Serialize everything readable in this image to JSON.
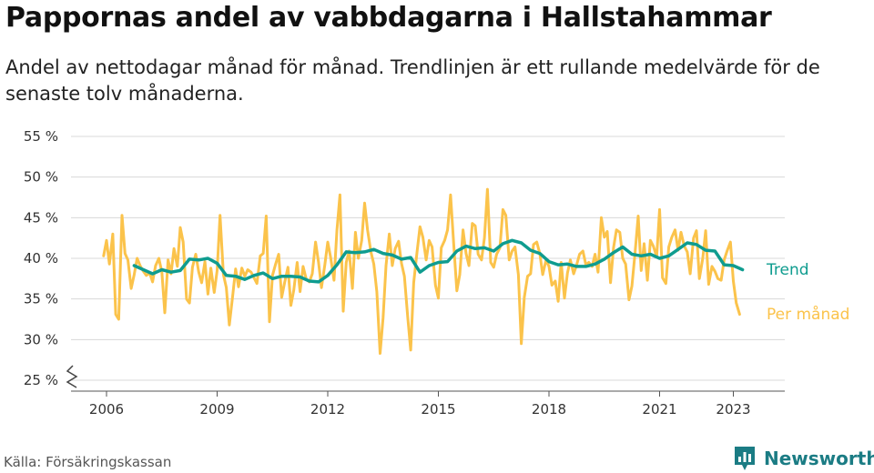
{
  "header": {
    "title": "Pappornas andel av vabbdagarna i Hallstahammar",
    "subtitle": "Andel av nettodagar månad för månad. Trendlinjen är ett rullande medelvärde för de senaste tolv månaderna."
  },
  "footer": {
    "source": "Källa: Försäkringskassan",
    "brand": "Newsworthy"
  },
  "colors": {
    "monthly": "#fbc34b",
    "trend": "#0f9c8f",
    "brand": "#1b7c84"
  },
  "icons": {
    "axis_break": "axis-break-icon",
    "logo": "bar-chart-logo-icon"
  },
  "chart_data": {
    "type": "line",
    "y_tick_labels": [
      "25 %",
      "30 %",
      "35 %",
      "40 %",
      "45 %",
      "50 %",
      "55 %"
    ],
    "x_tick_labels": [
      "2006",
      "2009",
      "2012",
      "2015",
      "2018",
      "2021",
      "2023"
    ],
    "ylim": [
      25,
      55
    ],
    "grid": true,
    "axis_break": true,
    "legend": "inline labels at line ends (right)",
    "series": [
      {
        "name": "Per månad",
        "values": [
          [
            2005.92,
            40.3
          ],
          [
            2006.0,
            42.2
          ],
          [
            2006.08,
            39.3
          ],
          [
            2006.17,
            43.0
          ],
          [
            2006.25,
            33.1
          ],
          [
            2006.33,
            32.5
          ],
          [
            2006.42,
            45.3
          ],
          [
            2006.5,
            40.6
          ],
          [
            2006.58,
            39.8
          ],
          [
            2006.67,
            36.3
          ],
          [
            2006.75,
            38.0
          ],
          [
            2006.83,
            40.0
          ],
          [
            2006.92,
            39.0
          ],
          [
            2007.0,
            38.4
          ],
          [
            2007.08,
            37.9
          ],
          [
            2007.17,
            38.2
          ],
          [
            2007.25,
            37.1
          ],
          [
            2007.33,
            39.1
          ],
          [
            2007.42,
            40.0
          ],
          [
            2007.5,
            38.3
          ],
          [
            2007.58,
            33.3
          ],
          [
            2007.67,
            39.8
          ],
          [
            2007.75,
            38.1
          ],
          [
            2007.83,
            41.2
          ],
          [
            2007.92,
            39.0
          ],
          [
            2008.0,
            43.8
          ],
          [
            2008.08,
            42.0
          ],
          [
            2008.17,
            35.0
          ],
          [
            2008.25,
            34.5
          ],
          [
            2008.33,
            38.9
          ],
          [
            2008.42,
            40.5
          ],
          [
            2008.5,
            38.3
          ],
          [
            2008.58,
            37.0
          ],
          [
            2008.67,
            39.6
          ],
          [
            2008.75,
            35.6
          ],
          [
            2008.83,
            38.8
          ],
          [
            2008.92,
            35.8
          ],
          [
            2009.0,
            38.5
          ],
          [
            2009.08,
            45.3
          ],
          [
            2009.17,
            38.0
          ],
          [
            2009.25,
            36.4
          ],
          [
            2009.33,
            31.8
          ],
          [
            2009.42,
            35.3
          ],
          [
            2009.5,
            38.7
          ],
          [
            2009.58,
            36.5
          ],
          [
            2009.67,
            38.8
          ],
          [
            2009.75,
            37.8
          ],
          [
            2009.83,
            38.6
          ],
          [
            2009.92,
            38.3
          ],
          [
            2010.0,
            37.6
          ],
          [
            2010.08,
            36.9
          ],
          [
            2010.17,
            40.3
          ],
          [
            2010.25,
            40.6
          ],
          [
            2010.33,
            45.2
          ],
          [
            2010.42,
            32.2
          ],
          [
            2010.5,
            37.9
          ],
          [
            2010.58,
            39.2
          ],
          [
            2010.67,
            40.5
          ],
          [
            2010.75,
            35.2
          ],
          [
            2010.83,
            37.0
          ],
          [
            2010.92,
            38.9
          ],
          [
            2011.0,
            34.2
          ],
          [
            2011.08,
            36.1
          ],
          [
            2011.17,
            39.5
          ],
          [
            2011.25,
            35.9
          ],
          [
            2011.33,
            39.0
          ],
          [
            2011.42,
            37.4
          ],
          [
            2011.5,
            37.1
          ],
          [
            2011.58,
            38.1
          ],
          [
            2011.67,
            42.0
          ],
          [
            2011.75,
            39.5
          ],
          [
            2011.83,
            36.4
          ],
          [
            2011.92,
            39.2
          ],
          [
            2012.0,
            42.0
          ],
          [
            2012.08,
            40.1
          ],
          [
            2012.17,
            37.3
          ],
          [
            2012.25,
            43.5
          ],
          [
            2012.33,
            47.8
          ],
          [
            2012.42,
            33.5
          ],
          [
            2012.5,
            39.5
          ],
          [
            2012.58,
            40.9
          ],
          [
            2012.67,
            36.3
          ],
          [
            2012.75,
            43.2
          ],
          [
            2012.83,
            40.0
          ],
          [
            2012.92,
            42.2
          ],
          [
            2013.0,
            46.8
          ],
          [
            2013.08,
            43.5
          ],
          [
            2013.17,
            40.8
          ],
          [
            2013.25,
            39.3
          ],
          [
            2013.33,
            35.9
          ],
          [
            2013.42,
            28.3
          ],
          [
            2013.5,
            32.7
          ],
          [
            2013.58,
            39.1
          ],
          [
            2013.67,
            43.0
          ],
          [
            2013.75,
            39.1
          ],
          [
            2013.83,
            41.2
          ],
          [
            2013.92,
            42.1
          ],
          [
            2014.0,
            39.4
          ],
          [
            2014.08,
            37.8
          ],
          [
            2014.17,
            32.7
          ],
          [
            2014.25,
            28.7
          ],
          [
            2014.33,
            37.0
          ],
          [
            2014.42,
            40.7
          ],
          [
            2014.5,
            43.9
          ],
          [
            2014.58,
            42.6
          ],
          [
            2014.67,
            39.8
          ],
          [
            2014.75,
            42.2
          ],
          [
            2014.83,
            41.4
          ],
          [
            2014.92,
            36.7
          ],
          [
            2015.0,
            35.1
          ],
          [
            2015.08,
            41.3
          ],
          [
            2015.17,
            42.2
          ],
          [
            2015.25,
            43.5
          ],
          [
            2015.33,
            47.8
          ],
          [
            2015.42,
            41.5
          ],
          [
            2015.5,
            36.0
          ],
          [
            2015.58,
            38.0
          ],
          [
            2015.67,
            43.5
          ],
          [
            2015.75,
            40.6
          ],
          [
            2015.83,
            39.1
          ],
          [
            2015.92,
            44.3
          ],
          [
            2016.0,
            44.0
          ],
          [
            2016.08,
            40.5
          ],
          [
            2016.17,
            39.8
          ],
          [
            2016.25,
            42.5
          ],
          [
            2016.33,
            48.5
          ],
          [
            2016.42,
            39.5
          ],
          [
            2016.5,
            38.9
          ],
          [
            2016.58,
            40.5
          ],
          [
            2016.67,
            41.3
          ],
          [
            2016.75,
            46.0
          ],
          [
            2016.83,
            45.3
          ],
          [
            2016.92,
            39.8
          ],
          [
            2017.0,
            40.9
          ],
          [
            2017.08,
            41.4
          ],
          [
            2017.17,
            38.0
          ],
          [
            2017.25,
            29.5
          ],
          [
            2017.33,
            35.2
          ],
          [
            2017.42,
            37.8
          ],
          [
            2017.5,
            38.1
          ],
          [
            2017.58,
            41.7
          ],
          [
            2017.67,
            42.0
          ],
          [
            2017.75,
            40.6
          ],
          [
            2017.83,
            38.0
          ],
          [
            2017.92,
            39.8
          ],
          [
            2018.0,
            39.0
          ],
          [
            2018.08,
            36.7
          ],
          [
            2018.17,
            37.2
          ],
          [
            2018.25,
            34.7
          ],
          [
            2018.33,
            39.5
          ],
          [
            2018.42,
            35.1
          ],
          [
            2018.5,
            38.2
          ],
          [
            2018.58,
            39.8
          ],
          [
            2018.67,
            38.1
          ],
          [
            2018.75,
            39.2
          ],
          [
            2018.83,
            40.5
          ],
          [
            2018.92,
            40.9
          ],
          [
            2019.0,
            39.2
          ],
          [
            2019.08,
            39.5
          ],
          [
            2019.17,
            39.0
          ],
          [
            2019.25,
            40.5
          ],
          [
            2019.33,
            38.3
          ],
          [
            2019.42,
            45.0
          ],
          [
            2019.5,
            42.6
          ],
          [
            2019.58,
            43.3
          ],
          [
            2019.67,
            37.0
          ],
          [
            2019.75,
            41.3
          ],
          [
            2019.83,
            43.5
          ],
          [
            2019.92,
            43.2
          ],
          [
            2020.0,
            40.0
          ],
          [
            2020.08,
            39.3
          ],
          [
            2020.17,
            34.9
          ],
          [
            2020.25,
            36.6
          ],
          [
            2020.33,
            40.5
          ],
          [
            2020.42,
            45.2
          ],
          [
            2020.5,
            38.5
          ],
          [
            2020.58,
            41.8
          ],
          [
            2020.67,
            37.3
          ],
          [
            2020.75,
            42.2
          ],
          [
            2020.83,
            41.5
          ],
          [
            2020.92,
            40.2
          ],
          [
            2021.0,
            46.0
          ],
          [
            2021.08,
            37.6
          ],
          [
            2021.17,
            36.9
          ],
          [
            2021.25,
            41.4
          ],
          [
            2021.33,
            42.6
          ],
          [
            2021.42,
            43.5
          ],
          [
            2021.5,
            41.0
          ],
          [
            2021.58,
            43.2
          ],
          [
            2021.67,
            41.5
          ],
          [
            2021.75,
            40.8
          ],
          [
            2021.83,
            38.1
          ],
          [
            2021.92,
            42.5
          ],
          [
            2022.0,
            43.4
          ],
          [
            2022.08,
            37.5
          ],
          [
            2022.17,
            40.0
          ],
          [
            2022.25,
            43.4
          ],
          [
            2022.33,
            36.8
          ],
          [
            2022.42,
            39.0
          ],
          [
            2022.5,
            38.4
          ],
          [
            2022.58,
            37.5
          ],
          [
            2022.67,
            37.3
          ],
          [
            2022.75,
            39.8
          ],
          [
            2022.83,
            40.9
          ],
          [
            2022.92,
            42.0
          ],
          [
            2023.0,
            37.2
          ],
          [
            2023.08,
            34.5
          ],
          [
            2023.17,
            33.1
          ]
        ]
      },
      {
        "name": "Trend",
        "values": [
          [
            2006.75,
            39.1
          ],
          [
            2007.0,
            38.6
          ],
          [
            2007.25,
            38.1
          ],
          [
            2007.5,
            38.6
          ],
          [
            2007.75,
            38.3
          ],
          [
            2008.0,
            38.5
          ],
          [
            2008.25,
            39.9
          ],
          [
            2008.5,
            39.8
          ],
          [
            2008.75,
            40.0
          ],
          [
            2009.0,
            39.4
          ],
          [
            2009.25,
            37.9
          ],
          [
            2009.5,
            37.8
          ],
          [
            2009.75,
            37.4
          ],
          [
            2010.0,
            37.9
          ],
          [
            2010.25,
            38.2
          ],
          [
            2010.5,
            37.5
          ],
          [
            2010.75,
            37.8
          ],
          [
            2011.0,
            37.8
          ],
          [
            2011.25,
            37.7
          ],
          [
            2011.5,
            37.2
          ],
          [
            2011.75,
            37.1
          ],
          [
            2012.0,
            37.9
          ],
          [
            2012.25,
            39.2
          ],
          [
            2012.5,
            40.8
          ],
          [
            2012.75,
            40.7
          ],
          [
            2013.0,
            40.8
          ],
          [
            2013.25,
            41.1
          ],
          [
            2013.5,
            40.6
          ],
          [
            2013.75,
            40.4
          ],
          [
            2014.0,
            39.9
          ],
          [
            2014.25,
            40.1
          ],
          [
            2014.5,
            38.3
          ],
          [
            2014.75,
            39.1
          ],
          [
            2015.0,
            39.5
          ],
          [
            2015.25,
            39.6
          ],
          [
            2015.5,
            40.9
          ],
          [
            2015.75,
            41.5
          ],
          [
            2016.0,
            41.2
          ],
          [
            2016.25,
            41.3
          ],
          [
            2016.5,
            40.9
          ],
          [
            2016.75,
            41.8
          ],
          [
            2017.0,
            42.2
          ],
          [
            2017.25,
            41.9
          ],
          [
            2017.5,
            41.0
          ],
          [
            2017.75,
            40.6
          ],
          [
            2018.0,
            39.6
          ],
          [
            2018.25,
            39.2
          ],
          [
            2018.5,
            39.3
          ],
          [
            2018.75,
            39.0
          ],
          [
            2019.0,
            39.0
          ],
          [
            2019.25,
            39.3
          ],
          [
            2019.5,
            39.9
          ],
          [
            2019.75,
            40.7
          ],
          [
            2020.0,
            41.4
          ],
          [
            2020.25,
            40.5
          ],
          [
            2020.5,
            40.3
          ],
          [
            2020.75,
            40.5
          ],
          [
            2021.0,
            40.0
          ],
          [
            2021.25,
            40.3
          ],
          [
            2021.5,
            41.1
          ],
          [
            2021.75,
            41.9
          ],
          [
            2022.0,
            41.7
          ],
          [
            2022.25,
            41.0
          ],
          [
            2022.5,
            40.9
          ],
          [
            2022.75,
            39.2
          ],
          [
            2023.0,
            39.1
          ],
          [
            2023.25,
            38.6
          ]
        ]
      }
    ]
  }
}
